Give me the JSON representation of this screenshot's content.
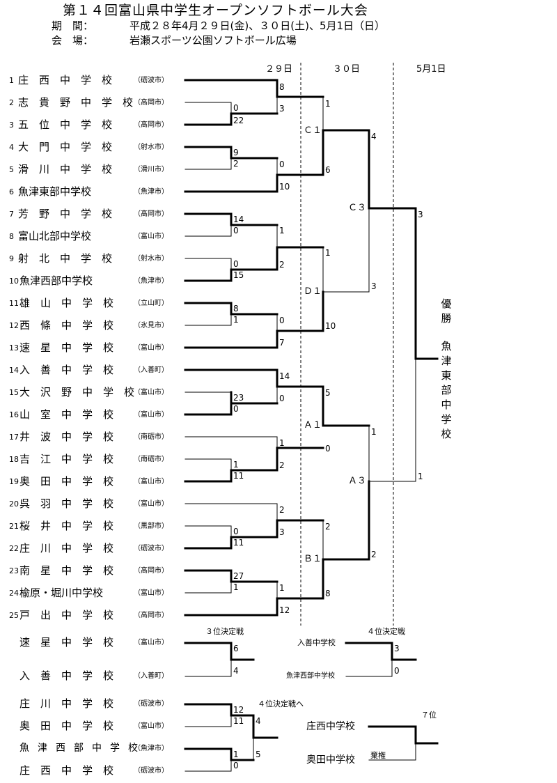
{
  "header": {
    "title": "第１４回富山県中学生オープンソフトボール大会",
    "period_label": "期　間：",
    "period_value": "平成２８年4月２９日(金)、３０日(土)、5月1日（日）",
    "venue_label": "会　場：",
    "venue_value": "岩瀬スポーツ公園ソフトボール広場"
  },
  "day_headers": [
    "２９日",
    "３０日",
    "5月1日"
  ],
  "teams": [
    {
      "no": "1",
      "name": "庄　西　中　学　校",
      "city": "（砺波市）"
    },
    {
      "no": "2",
      "name": "志　貴　野　中　学　校",
      "city": "（高岡市）"
    },
    {
      "no": "3",
      "name": "五　位　中　学　校",
      "city": "（高岡市）"
    },
    {
      "no": "4",
      "name": "大　門　中　学　校",
      "city": "（射水市）"
    },
    {
      "no": "5",
      "name": "滑　川　中　学　校",
      "city": "（滑川市）"
    },
    {
      "no": "6",
      "name": "魚津東部中学校",
      "city": "（魚津市）"
    },
    {
      "no": "7",
      "name": "芳　野　中　学　校",
      "city": "（高岡市）"
    },
    {
      "no": "8",
      "name": "富山北部中学校",
      "city": "（富山市）"
    },
    {
      "no": "9",
      "name": "射　北　中　学　校",
      "city": "（射水市）"
    },
    {
      "no": "10",
      "name": "魚津西部中学校",
      "city": "（魚津市）"
    },
    {
      "no": "11",
      "name": "雄　山　中　学　校",
      "city": "（立山町）"
    },
    {
      "no": "12",
      "name": "西　條　中　学　校",
      "city": "（氷見市）"
    },
    {
      "no": "13",
      "name": "速　星　中　学　校",
      "city": "（富山市）"
    },
    {
      "no": "14",
      "name": "入　善　中　学　校",
      "city": "（入善町）"
    },
    {
      "no": "15",
      "name": "大　沢　野　中　学　校",
      "city": "（富山市）"
    },
    {
      "no": "16",
      "name": "山　室　中　学　校",
      "city": "（富山市）"
    },
    {
      "no": "17",
      "name": "井　波　中　学　校",
      "city": "（南砺市）"
    },
    {
      "no": "18",
      "name": "吉　江　中　学　校",
      "city": "（南砺市）"
    },
    {
      "no": "19",
      "name": "奥　田　中　学　校",
      "city": "（富山市）"
    },
    {
      "no": "20",
      "name": "呉　羽　中　学　校",
      "city": "（富山市）"
    },
    {
      "no": "21",
      "name": "桜　井　中　学　校",
      "city": "（黒部市）"
    },
    {
      "no": "22",
      "name": "庄　川　中　学　校",
      "city": "（砺波市）"
    },
    {
      "no": "23",
      "name": "南　星　中　学　校",
      "city": "（高岡市）"
    },
    {
      "no": "24",
      "name": "楡原・堀川中学校",
      "city": "（富山市）"
    },
    {
      "no": "25",
      "name": "戸　出　中　学　校",
      "city": "（高岡市）"
    }
  ],
  "scores": {
    "r1_2_3": [
      "0",
      "22"
    ],
    "r1_4_5": [
      "9",
      "2"
    ],
    "r1_7_8": [
      "14",
      "0"
    ],
    "r1_9_10": [
      "0",
      "15"
    ],
    "r1_11_12": [
      "8",
      "1"
    ],
    "r1_15_16": [
      "23",
      "0"
    ],
    "r1_18_19": [
      "1",
      "11"
    ],
    "r1_21_22": [
      "0",
      "11"
    ],
    "r1_23_24": [
      "27",
      "1"
    ],
    "r2_1_23": [
      "8",
      "3"
    ],
    "r2_45_6": [
      "0",
      "10"
    ],
    "r2_78_910": [
      "1",
      "2"
    ],
    "r2_1112_13": [
      "0",
      "7"
    ],
    "r2_14_1516": [
      "14",
      "0"
    ],
    "r2_17_1819": [
      "1",
      "2"
    ],
    "r2_20_2122": [
      "2",
      "3"
    ],
    "r2_2324_25": [
      "1",
      "12"
    ],
    "q_C1": [
      "1",
      "6"
    ],
    "q_D1": [
      "1",
      "10"
    ],
    "q_A1": [
      "5",
      "0"
    ],
    "q_B1": [
      "2",
      "8"
    ],
    "s_C3": [
      "4",
      "3"
    ],
    "s_A3": [
      "1",
      "2"
    ],
    "f": [
      "3",
      "1"
    ]
  },
  "match_labels": {
    "C1": "Ｃ１",
    "D1": "Ｄ１",
    "A1": "Ａ１",
    "B1": "Ｂ１",
    "C3": "Ｃ３",
    "A3": "Ａ３"
  },
  "champion": {
    "label": "優勝",
    "team": "魚津東部中学校"
  },
  "third_place": {
    "title": "３位決定戦",
    "teams": [
      {
        "name": "速　星　中　学　校",
        "city": "（富山市）"
      },
      {
        "name": "入　善　中　学　校",
        "city": "（入善町）"
      }
    ],
    "scores": [
      "6",
      "4"
    ]
  },
  "fourth_place": {
    "title": "４位決定戦",
    "teams": [
      "入善中学校",
      "魚津西部中学校"
    ],
    "scores": [
      "3",
      "0"
    ]
  },
  "to_fourth": {
    "title": "４位決定戦へ",
    "teams": [
      {
        "name": "庄　川　中　学　校",
        "city": "（砺波市）"
      },
      {
        "name": "奥　田　中　学　校",
        "city": "（富山市）"
      },
      {
        "name": "魚　津　西　部　中　学　校",
        "city": "（魚津市）"
      },
      {
        "name": "庄　西　中　学　校",
        "city": "（砺波市）"
      }
    ],
    "scores": [
      "12",
      "11",
      "1",
      "0"
    ],
    "semi_scores": [
      "4",
      "5"
    ]
  },
  "seventh_place": {
    "title": "７位",
    "teams": [
      "庄西中学校",
      "奥田中学校"
    ],
    "note": "棄権"
  }
}
